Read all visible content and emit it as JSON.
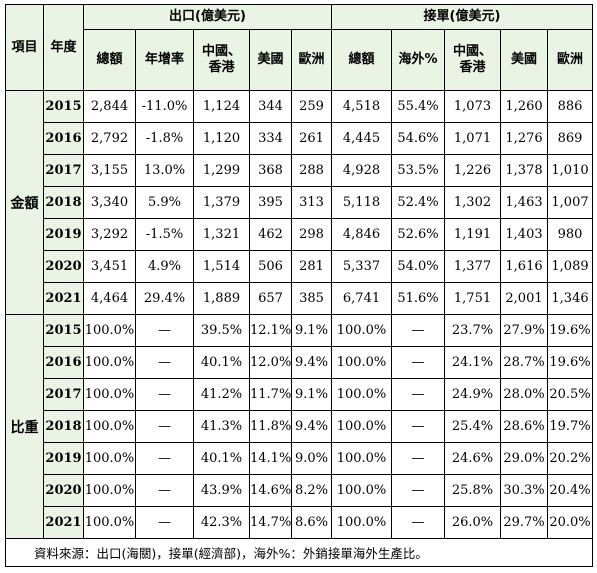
{
  "headers": {
    "item": "項目",
    "year": "年度",
    "export_group": "出口(億美元)",
    "orders_group": "接單(億美元)",
    "export_cols": [
      "總額",
      "年增率",
      "中國、|香港",
      "美國",
      "歐洲"
    ],
    "orders_cols": [
      "總額",
      "海外%",
      "中國、|香港",
      "美國",
      "歐洲"
    ]
  },
  "sections": {
    "amount": "金額",
    "share": "比重"
  },
  "amount_rows": [
    {
      "year": "2015",
      "cells": [
        "2,844",
        "-11.0%",
        "1,124",
        "344",
        "259",
        "4,518",
        "55.4%",
        "1,073",
        "1,260",
        "886"
      ]
    },
    {
      "year": "2016",
      "cells": [
        "2,792",
        "-1.8%",
        "1,120",
        "334",
        "261",
        "4,445",
        "54.6%",
        "1,071",
        "1,276",
        "869"
      ]
    },
    {
      "year": "2017",
      "cells": [
        "3,155",
        "13.0%",
        "1,299",
        "368",
        "288",
        "4,928",
        "53.5%",
        "1,226",
        "1,378",
        "1,010"
      ]
    },
    {
      "year": "2018",
      "cells": [
        "3,340",
        "5.9%",
        "1,379",
        "395",
        "313",
        "5,118",
        "52.4%",
        "1,302",
        "1,463",
        "1,007"
      ]
    },
    {
      "year": "2019",
      "cells": [
        "3,292",
        "-1.5%",
        "1,321",
        "462",
        "298",
        "4,846",
        "52.6%",
        "1,191",
        "1,403",
        "980"
      ]
    },
    {
      "year": "2020",
      "cells": [
        "3,451",
        "4.9%",
        "1,514",
        "506",
        "281",
        "5,337",
        "54.0%",
        "1,377",
        "1,616",
        "1,089"
      ]
    },
    {
      "year": "2021",
      "cells": [
        "4,464",
        "29.4%",
        "1,889",
        "657",
        "385",
        "6,741",
        "51.6%",
        "1,751",
        "2,001",
        "1,346"
      ]
    }
  ],
  "share_rows": [
    {
      "year": "2015",
      "cells": [
        "100.0%",
        "—",
        "39.5%",
        "12.1%",
        "9.1%",
        "100.0%",
        "—",
        "23.7%",
        "27.9%",
        "19.6%"
      ]
    },
    {
      "year": "2016",
      "cells": [
        "100.0%",
        "—",
        "40.1%",
        "12.0%",
        "9.4%",
        "100.0%",
        "—",
        "24.1%",
        "28.7%",
        "19.6%"
      ]
    },
    {
      "year": "2017",
      "cells": [
        "100.0%",
        "—",
        "41.2%",
        "11.7%",
        "9.1%",
        "100.0%",
        "—",
        "24.9%",
        "28.0%",
        "20.5%"
      ]
    },
    {
      "year": "2018",
      "cells": [
        "100.0%",
        "—",
        "41.3%",
        "11.8%",
        "9.4%",
        "100.0%",
        "—",
        "25.4%",
        "28.6%",
        "19.7%"
      ]
    },
    {
      "year": "2019",
      "cells": [
        "100.0%",
        "—",
        "40.1%",
        "14.1%",
        "9.0%",
        "100.0%",
        "—",
        "24.6%",
        "29.0%",
        "20.2%"
      ]
    },
    {
      "year": "2020",
      "cells": [
        "100.0%",
        "—",
        "43.9%",
        "14.6%",
        "8.2%",
        "100.0%",
        "—",
        "25.8%",
        "30.3%",
        "20.4%"
      ]
    },
    {
      "year": "2021",
      "cells": [
        "100.0%",
        "—",
        "42.3%",
        "14.7%",
        "8.6%",
        "100.0%",
        "—",
        "26.0%",
        "29.7%",
        "20.0%"
      ]
    }
  ],
  "source_note": "資料來源：出口(海關)，接單(經濟部)，海外%：外銷接單海外生產比。"
}
